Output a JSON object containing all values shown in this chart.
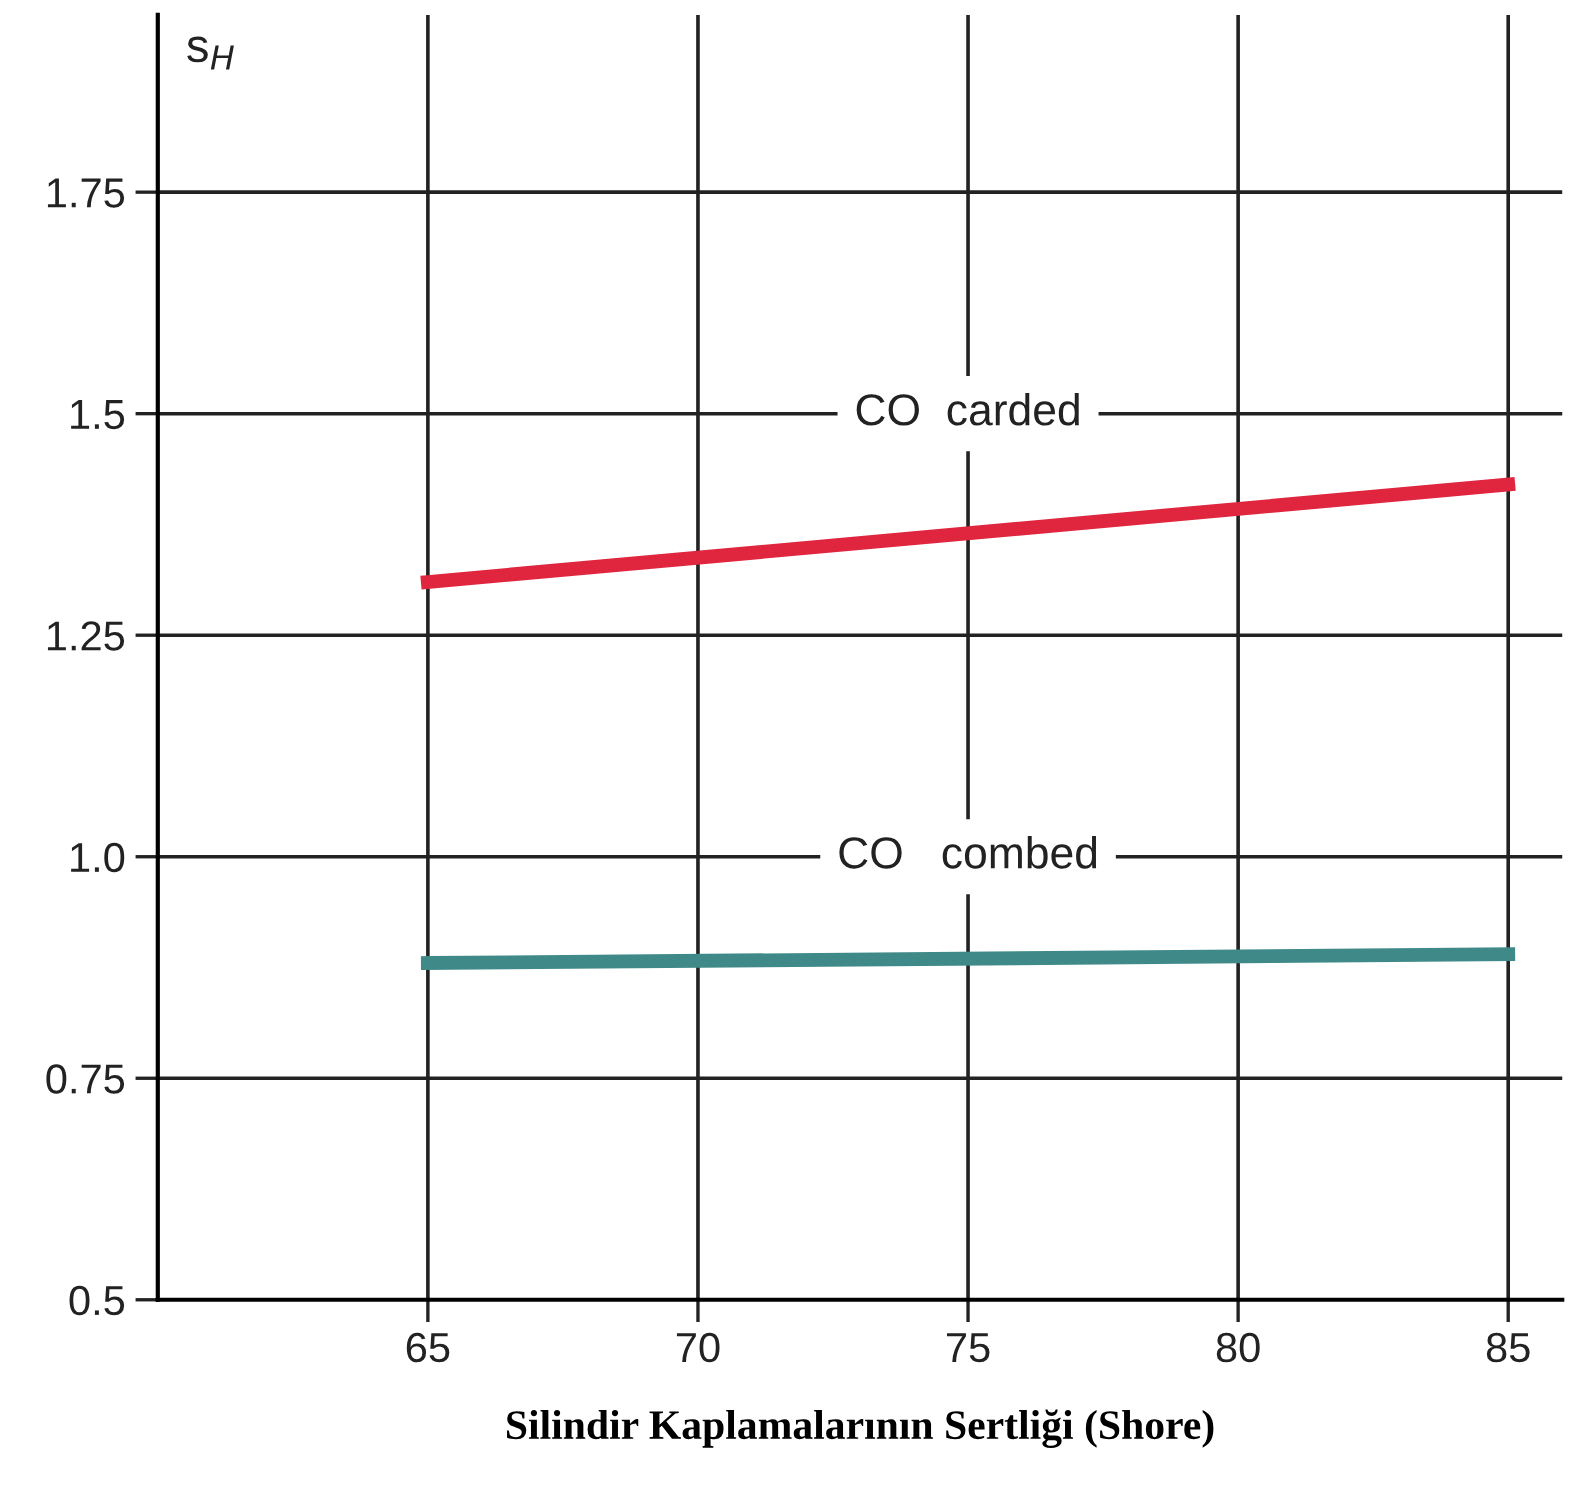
{
  "chart_data": {
    "type": "line",
    "xlabel": "Silindir Kaplamalarının Sertliği (Shore)",
    "ylabel": "s$_{H}$",
    "x": [
      65,
      85
    ],
    "series": [
      {
        "name": "CO  carded",
        "color": "#e0263f",
        "values": [
          1.31,
          1.42
        ]
      },
      {
        "name": "CO   combed",
        "color": "#3f8a88",
        "values": [
          0.88,
          0.89
        ]
      }
    ],
    "xlim": [
      60,
      86
    ],
    "ylim": [
      0.5,
      1.95
    ],
    "xticks": [
      65,
      70,
      75,
      80,
      85
    ],
    "yticks": [
      0.5,
      0.75,
      {
        "value": 1,
        "label": "1.0"
      },
      1.25,
      1.5,
      1.75
    ],
    "grid": true,
    "legend": false,
    "marker": "none",
    "line_style": "solid"
  }
}
